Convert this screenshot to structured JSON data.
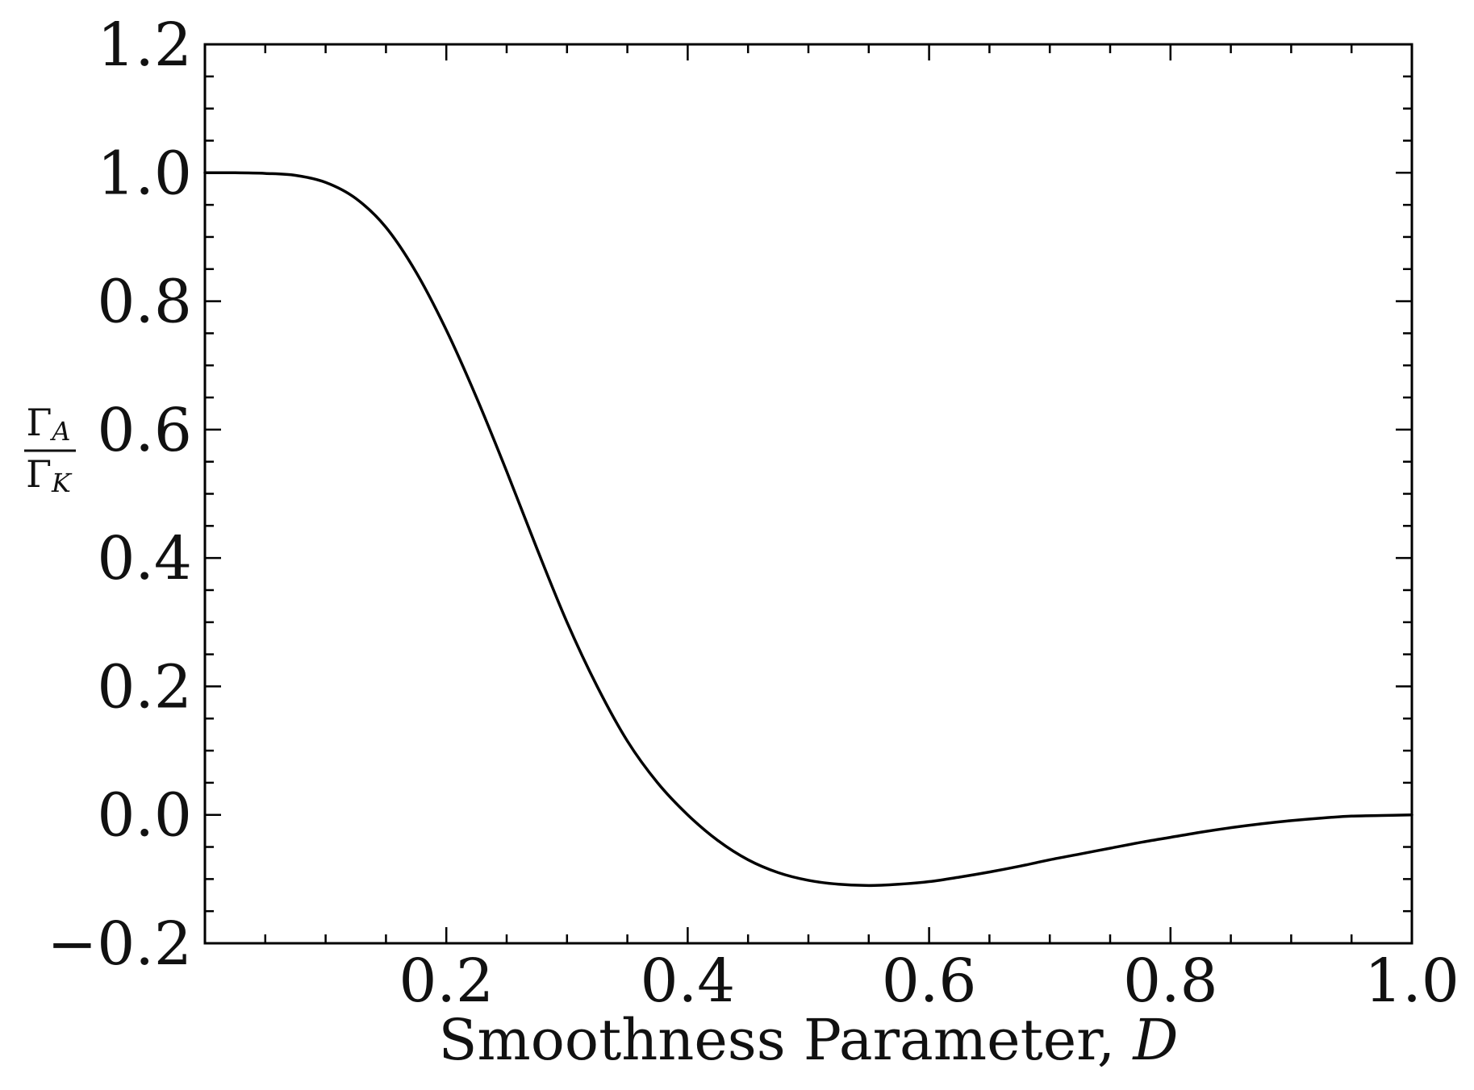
{
  "chart_data": {
    "type": "line",
    "title": "",
    "xlabel_text": "Smoothness Parameter, ",
    "xlabel_var": "D",
    "ylabel": {
      "numerator": "Γ",
      "numerator_sub": "A",
      "denominator": "Γ",
      "denominator_sub": "K"
    },
    "xlim": [
      0.0,
      1.0
    ],
    "ylim": [
      -0.2,
      1.2
    ],
    "x_major_ticks": [
      0.2,
      0.4,
      0.6,
      0.8,
      1.0
    ],
    "x_tick_labels": [
      "0.2",
      "0.4",
      "0.6",
      "0.8",
      "1.0"
    ],
    "x_minor_step": 0.05,
    "y_major_ticks": [
      -0.2,
      0.0,
      0.2,
      0.4,
      0.6,
      0.8,
      1.0,
      1.2
    ],
    "y_tick_labels": [
      "−0.2",
      "0.0",
      "0.2",
      "0.4",
      "0.6",
      "0.8",
      "1.0",
      "1.2"
    ],
    "y_minor_step": 0.05,
    "grid": false,
    "line_color": "#000000",
    "series": [
      {
        "x": [
          0.0,
          0.025,
          0.05,
          0.075,
          0.1,
          0.125,
          0.15,
          0.175,
          0.2,
          0.225,
          0.25,
          0.275,
          0.3,
          0.325,
          0.35,
          0.375,
          0.4,
          0.425,
          0.45,
          0.475,
          0.5,
          0.525,
          0.55,
          0.575,
          0.6,
          0.625,
          0.65,
          0.675,
          0.7,
          0.725,
          0.75,
          0.775,
          0.8,
          0.825,
          0.85,
          0.875,
          0.9,
          0.925,
          0.95,
          0.975,
          1.0
        ],
        "y": [
          1.0,
          1.0,
          0.999,
          0.996,
          0.985,
          0.96,
          0.915,
          0.845,
          0.755,
          0.65,
          0.535,
          0.415,
          0.3,
          0.2,
          0.115,
          0.05,
          0.0,
          -0.04,
          -0.07,
          -0.09,
          -0.102,
          -0.108,
          -0.11,
          -0.108,
          -0.104,
          -0.097,
          -0.089,
          -0.08,
          -0.07,
          -0.061,
          -0.052,
          -0.043,
          -0.035,
          -0.027,
          -0.02,
          -0.014,
          -0.009,
          -0.005,
          -0.002,
          -0.001,
          0.0
        ]
      }
    ]
  }
}
